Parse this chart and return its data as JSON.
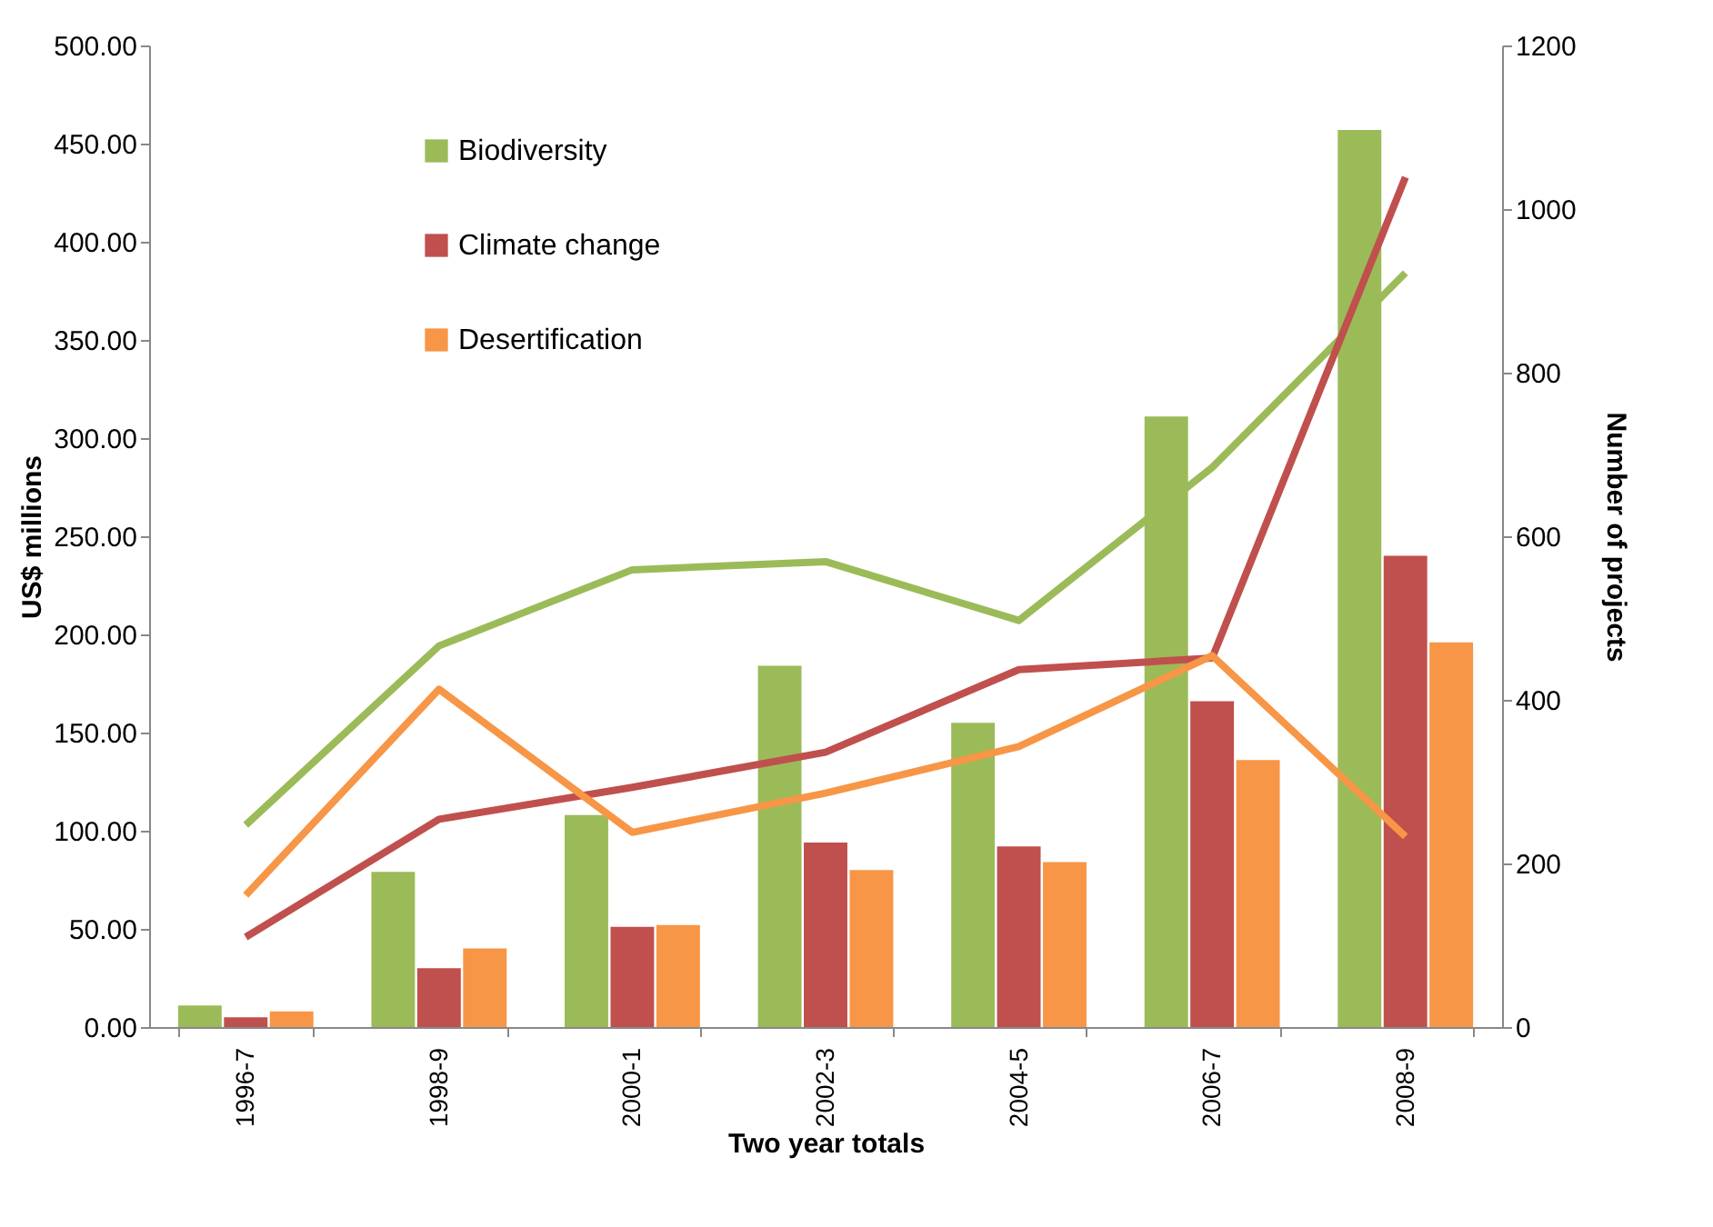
{
  "chart_data": {
    "type": "bar",
    "xlabel": "Two year totals",
    "ylabel": "US$ millions",
    "y2label": "Number of projects",
    "categories": [
      "1996-7",
      "1998-9",
      "2000-1",
      "2002-3",
      "2004-5",
      "2006-7",
      "2008-9"
    ],
    "series": [
      {
        "name": "Biodiversity",
        "color": "#9bbb59",
        "values": [
          11,
          79,
          108,
          184,
          155,
          311,
          457
        ]
      },
      {
        "name": "Climate change",
        "color": "#c0504d",
        "values": [
          5,
          30,
          51,
          94,
          92,
          166,
          240
        ]
      },
      {
        "name": "Desertification",
        "color": "#f79646",
        "values": [
          8,
          40,
          52,
          80,
          84,
          136,
          196
        ]
      },
      {
        "type": "line",
        "axis": "y2",
        "color": "#9bbb59",
        "values": [
          247,
          466,
          559,
          569,
          497,
          684,
          922
        ]
      },
      {
        "type": "line",
        "axis": "y2",
        "color": "#c0504d",
        "values": [
          110,
          254,
          293,
          336,
          437,
          451,
          1039
        ]
      },
      {
        "type": "line",
        "axis": "y2",
        "color": "#f79646",
        "values": [
          161,
          413,
          238,
          286,
          343,
          454,
          233
        ]
      }
    ],
    "ylim": [
      0,
      500
    ],
    "yticks": [
      {
        "value": 0,
        "label": "0.00"
      },
      {
        "value": 50,
        "label": "50.00"
      },
      {
        "value": 100,
        "label": "100.00"
      },
      {
        "value": 150,
        "label": "150.00"
      },
      {
        "value": 200,
        "label": "200.00"
      },
      {
        "value": 250,
        "label": "250.00"
      },
      {
        "value": 300,
        "label": "300.00"
      },
      {
        "value": 350,
        "label": "350.00"
      },
      {
        "value": 400,
        "label": "400.00"
      },
      {
        "value": 450,
        "label": "450.00"
      },
      {
        "value": 500,
        "label": "500.00"
      }
    ],
    "y2lim": [
      0,
      1200
    ],
    "y2ticks": [
      0,
      200,
      400,
      600,
      800,
      1000,
      1200
    ],
    "legend": "top left",
    "grid": false,
    "line_style": "solid",
    "marker": "none"
  }
}
